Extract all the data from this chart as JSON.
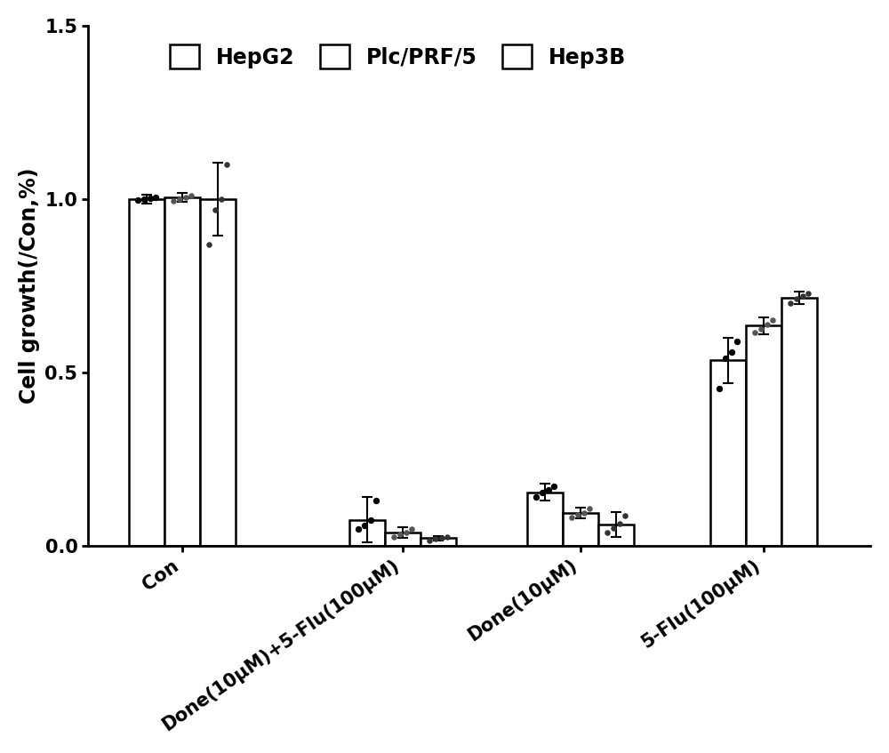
{
  "groups": [
    "Con",
    "Done(10μM)+5-Flu(100μM)",
    "Done(10μM)",
    "5-Flu(100μM)"
  ],
  "series": [
    "HepG2",
    "Plc/PRF/5",
    "Hep3B"
  ],
  "bar_values": [
    [
      1.0,
      0.075,
      0.155,
      0.535
    ],
    [
      1.005,
      0.038,
      0.095,
      0.635
    ],
    [
      1.0,
      0.022,
      0.062,
      0.715
    ]
  ],
  "error_values": [
    [
      0.012,
      0.065,
      0.025,
      0.065
    ],
    [
      0.012,
      0.015,
      0.015,
      0.025
    ],
    [
      0.105,
      0.007,
      0.035,
      0.018
    ]
  ],
  "dot_data": {
    "HepG2_Con": [
      0.997,
      1.0,
      1.002,
      1.004
    ],
    "Plc_Con": [
      0.994,
      1.0,
      1.006,
      1.01
    ],
    "Hep3B_Con": [
      0.87,
      0.97,
      1.0,
      1.1
    ],
    "HepG2_Done5Flu": [
      0.048,
      0.06,
      0.075,
      0.13
    ],
    "Plc_Done5Flu": [
      0.026,
      0.033,
      0.038,
      0.05
    ],
    "Hep3B_Done5Flu": [
      0.016,
      0.02,
      0.023,
      0.027
    ],
    "HepG2_Done": [
      0.14,
      0.155,
      0.162,
      0.172
    ],
    "Plc_Done": [
      0.082,
      0.09,
      0.095,
      0.108
    ],
    "Hep3B_Done": [
      0.038,
      0.052,
      0.065,
      0.088
    ],
    "HepG2_5Flu": [
      0.455,
      0.54,
      0.56,
      0.59
    ],
    "Plc_5Flu": [
      0.615,
      0.625,
      0.638,
      0.65
    ],
    "Hep3B_5Flu": [
      0.7,
      0.712,
      0.72,
      0.728
    ]
  },
  "bar_color": "#ffffff",
  "bar_edgecolor": "#000000",
  "dot_colors": [
    "#000000",
    "#555555",
    "#333333"
  ],
  "dot_sizes": [
    28,
    22,
    22
  ],
  "ylabel": "Cell growth(/Con,%)",
  "ylim": [
    0.0,
    1.5
  ],
  "yticks": [
    0.0,
    0.5,
    1.0,
    1.5
  ],
  "bar_width": 0.2,
  "group_centers": [
    0.38,
    1.62,
    2.62,
    3.65
  ],
  "figsize": [
    10.0,
    8.47
  ],
  "dpi": 100,
  "legend_labels": [
    "HepG2",
    "Plc/PRF/5",
    "Hep3B"
  ],
  "tick_fontsize": 15,
  "label_fontsize": 17,
  "legend_fontsize": 17,
  "xlim": [
    -0.15,
    4.25
  ]
}
